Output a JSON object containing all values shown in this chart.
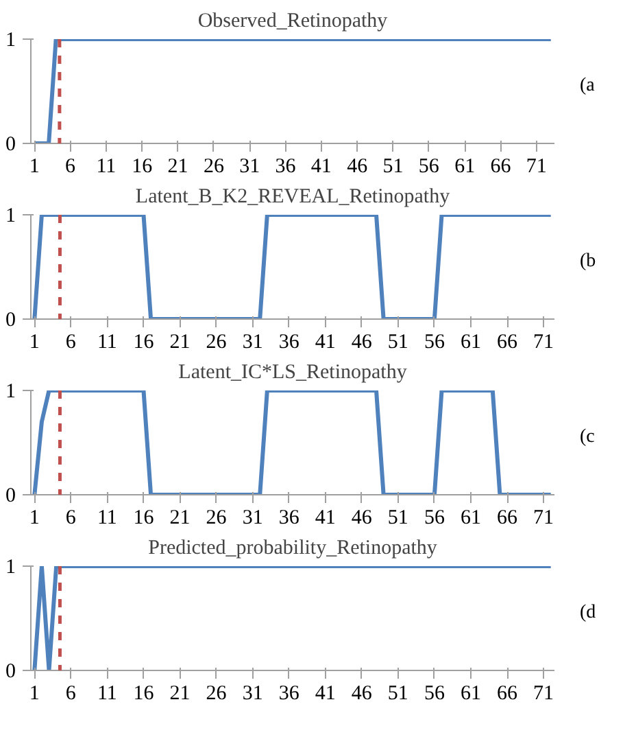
{
  "chart_data": [
    {
      "type": "line",
      "title": "Observed_Retinopathy",
      "annotations": [
        "(a"
      ],
      "x": [
        1,
        2,
        3,
        4,
        5,
        6,
        7,
        8,
        9,
        10,
        11,
        12,
        13,
        14,
        15,
        16,
        17,
        18,
        19,
        20,
        21,
        22,
        23,
        24,
        25,
        26,
        27,
        28,
        29,
        30,
        31,
        32,
        33,
        34,
        35,
        36,
        37,
        38,
        39,
        40,
        41,
        42,
        43,
        44,
        45,
        46,
        47,
        48,
        49,
        50,
        51,
        52,
        53,
        54,
        55,
        56,
        57,
        58,
        59,
        60,
        61,
        62,
        63,
        64,
        65,
        66,
        67,
        68,
        69,
        70,
        71,
        72,
        73
      ],
      "series": [
        {
          "color": "#4f81bd",
          "values": [
            0,
            0,
            0,
            1,
            1,
            1,
            1,
            1,
            1,
            1,
            1,
            1,
            1,
            1,
            1,
            1,
            1,
            1,
            1,
            1,
            1,
            1,
            1,
            1,
            1,
            1,
            1,
            1,
            1,
            1,
            1,
            1,
            1,
            1,
            1,
            1,
            1,
            1,
            1,
            1,
            1,
            1,
            1,
            1,
            1,
            1,
            1,
            1,
            1,
            1,
            1,
            1,
            1,
            1,
            1,
            1,
            1,
            1,
            1,
            1,
            1,
            1,
            1,
            1,
            1,
            1,
            1,
            1,
            1,
            1,
            1,
            1,
            1
          ]
        }
      ],
      "xlim": [
        0.5,
        73.5
      ],
      "xticks": [
        1,
        6,
        11,
        16,
        21,
        26,
        31,
        36,
        41,
        46,
        51,
        56,
        61,
        66,
        71
      ],
      "ylim": [
        0,
        1
      ],
      "yticks": [
        0,
        1
      ],
      "ref_lines": [
        {
          "axis": "x",
          "value": 4.5,
          "color": "#c0504d",
          "line_style": "dashed"
        }
      ],
      "line_style": "solid"
    },
    {
      "type": "line",
      "title": "Latent_B_K2_REVEAL_Retinopathy",
      "annotations": [
        "(b"
      ],
      "x": [
        1,
        2,
        3,
        4,
        5,
        6,
        7,
        8,
        9,
        10,
        11,
        12,
        13,
        14,
        15,
        16,
        17,
        18,
        19,
        20,
        21,
        22,
        23,
        24,
        25,
        26,
        27,
        28,
        29,
        30,
        31,
        32,
        33,
        34,
        35,
        36,
        37,
        38,
        39,
        40,
        41,
        42,
        43,
        44,
        45,
        46,
        47,
        48,
        49,
        50,
        51,
        52,
        53,
        54,
        55,
        56,
        57,
        58,
        59,
        60,
        61,
        62,
        63,
        64,
        65,
        66,
        67,
        68,
        69,
        70,
        71,
        72
      ],
      "series": [
        {
          "color": "#4f81bd",
          "values": [
            0,
            1,
            1,
            1,
            1,
            1,
            1,
            1,
            1,
            1,
            1,
            1,
            1,
            1,
            1,
            1,
            0,
            0,
            0,
            0,
            0,
            0,
            0,
            0,
            0,
            0,
            0,
            0,
            0,
            0,
            0,
            0,
            1,
            1,
            1,
            1,
            1,
            1,
            1,
            1,
            1,
            1,
            1,
            1,
            1,
            1,
            1,
            1,
            0,
            0,
            0,
            0,
            0,
            0,
            0,
            0,
            1,
            1,
            1,
            1,
            1,
            1,
            1,
            1,
            1,
            1,
            1,
            1,
            1,
            1,
            1,
            1
          ]
        }
      ],
      "xlim": [
        0.5,
        72.5
      ],
      "xticks": [
        1,
        6,
        11,
        16,
        21,
        26,
        31,
        36,
        41,
        46,
        51,
        56,
        61,
        66,
        71
      ],
      "ylim": [
        0,
        1
      ],
      "yticks": [
        0,
        1
      ],
      "ref_lines": [
        {
          "axis": "x",
          "value": 4.5,
          "color": "#c0504d",
          "line_style": "dashed"
        }
      ],
      "line_style": "solid"
    },
    {
      "type": "line",
      "title": "Latent_IC*LS_Retinopathy",
      "annotations": [
        "(c"
      ],
      "x": [
        1,
        2,
        3,
        4,
        5,
        6,
        7,
        8,
        9,
        10,
        11,
        12,
        13,
        14,
        15,
        16,
        17,
        18,
        19,
        20,
        21,
        22,
        23,
        24,
        25,
        26,
        27,
        28,
        29,
        30,
        31,
        32,
        33,
        34,
        35,
        36,
        37,
        38,
        39,
        40,
        41,
        42,
        43,
        44,
        45,
        46,
        47,
        48,
        49,
        50,
        51,
        52,
        53,
        54,
        55,
        56,
        57,
        58,
        59,
        60,
        61,
        62,
        63,
        64,
        65,
        66,
        67,
        68,
        69,
        70,
        71,
        72
      ],
      "series": [
        {
          "color": "#4f81bd",
          "values": [
            0,
            0.7,
            1,
            1,
            1,
            1,
            1,
            1,
            1,
            1,
            1,
            1,
            1,
            1,
            1,
            1,
            0,
            0,
            0,
            0,
            0,
            0,
            0,
            0,
            0,
            0,
            0,
            0,
            0,
            0,
            0,
            0,
            1,
            1,
            1,
            1,
            1,
            1,
            1,
            1,
            1,
            1,
            1,
            1,
            1,
            1,
            1,
            1,
            0,
            0,
            0,
            0,
            0,
            0,
            0,
            0,
            1,
            1,
            1,
            1,
            1,
            1,
            1,
            1,
            0,
            0,
            0,
            0,
            0,
            0,
            0,
            0
          ]
        }
      ],
      "xlim": [
        0.5,
        72.5
      ],
      "xticks": [
        1,
        6,
        11,
        16,
        21,
        26,
        31,
        36,
        41,
        46,
        51,
        56,
        61,
        66,
        71
      ],
      "ylim": [
        0,
        1
      ],
      "yticks": [
        0,
        1
      ],
      "ref_lines": [
        {
          "axis": "x",
          "value": 4.5,
          "color": "#c0504d",
          "line_style": "dashed"
        }
      ],
      "line_style": "solid"
    },
    {
      "type": "line",
      "title": "Predicted_probability_Retinopathy",
      "annotations": [
        "(d"
      ],
      "x": [
        1,
        2,
        3,
        4,
        5,
        6,
        7,
        8,
        9,
        10,
        11,
        12,
        13,
        14,
        15,
        16,
        17,
        18,
        19,
        20,
        21,
        22,
        23,
        24,
        25,
        26,
        27,
        28,
        29,
        30,
        31,
        32,
        33,
        34,
        35,
        36,
        37,
        38,
        39,
        40,
        41,
        42,
        43,
        44,
        45,
        46,
        47,
        48,
        49,
        50,
        51,
        52,
        53,
        54,
        55,
        56,
        57,
        58,
        59,
        60,
        61,
        62,
        63,
        64,
        65,
        66,
        67,
        68,
        69,
        70,
        71,
        72
      ],
      "series": [
        {
          "color": "#4f81bd",
          "values": [
            0,
            1,
            0,
            1,
            1,
            1,
            1,
            1,
            1,
            1,
            1,
            1,
            1,
            1,
            1,
            1,
            1,
            1,
            1,
            1,
            1,
            1,
            1,
            1,
            1,
            1,
            1,
            1,
            1,
            1,
            1,
            1,
            1,
            1,
            1,
            1,
            1,
            1,
            1,
            1,
            1,
            1,
            1,
            1,
            1,
            1,
            1,
            1,
            1,
            1,
            1,
            1,
            1,
            1,
            1,
            1,
            1,
            1,
            1,
            1,
            1,
            1,
            1,
            1,
            1,
            1,
            1,
            1,
            1,
            1,
            1,
            1
          ]
        }
      ],
      "xlim": [
        0.5,
        72.5
      ],
      "xticks": [
        1,
        6,
        11,
        16,
        21,
        26,
        31,
        36,
        41,
        46,
        51,
        56,
        61,
        66,
        71
      ],
      "ylim": [
        0,
        1
      ],
      "yticks": [
        0,
        1
      ],
      "ref_lines": [
        {
          "axis": "x",
          "value": 4.5,
          "color": "#c0504d",
          "line_style": "dashed"
        }
      ],
      "line_style": "solid"
    }
  ]
}
